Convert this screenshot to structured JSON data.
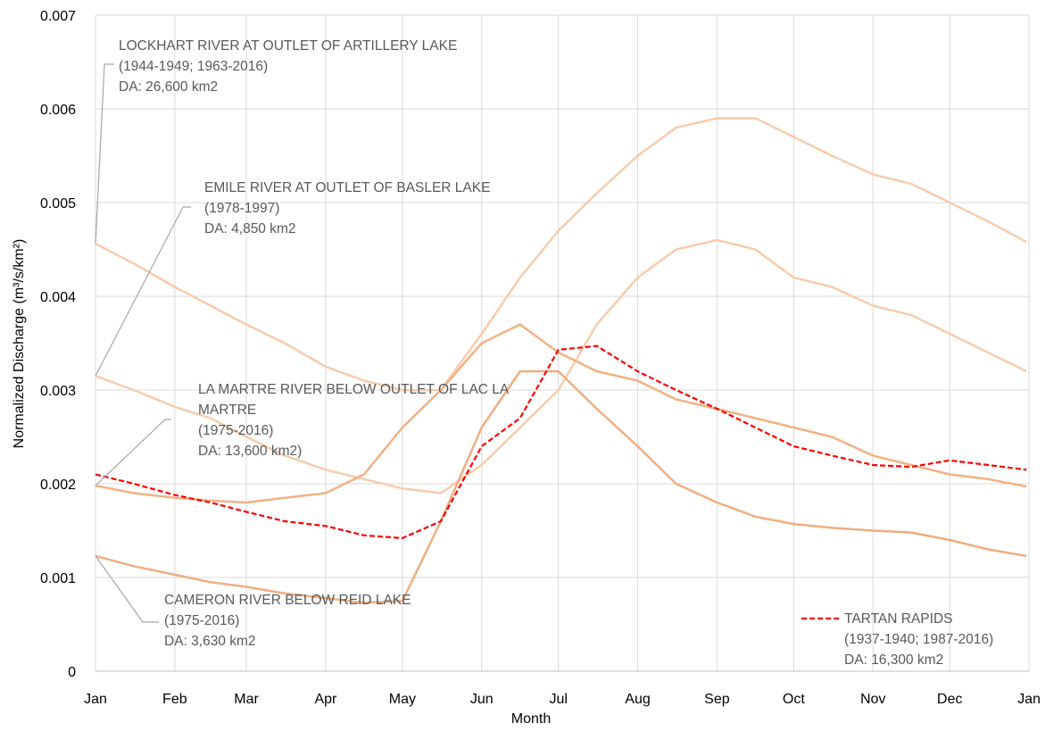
{
  "chart_data": {
    "type": "line",
    "x_label": "Month",
    "y_label": "Normalized Discharge (m³/s/km²)",
    "x": [
      0,
      15,
      31,
      45,
      59,
      74,
      90,
      105,
      120,
      135,
      151,
      166,
      181,
      196,
      212,
      227,
      243,
      258,
      273,
      288,
      304,
      319,
      334,
      349,
      364
    ],
    "xlim": [
      0,
      365
    ],
    "xticks": [
      {
        "value": 0,
        "label": "Jan"
      },
      {
        "value": 31,
        "label": "Feb"
      },
      {
        "value": 59,
        "label": "Mar"
      },
      {
        "value": 90,
        "label": "Apr"
      },
      {
        "value": 120,
        "label": "May"
      },
      {
        "value": 151,
        "label": "Jun"
      },
      {
        "value": 181,
        "label": "Jul"
      },
      {
        "value": 212,
        "label": "Aug"
      },
      {
        "value": 243,
        "label": "Sep"
      },
      {
        "value": 273,
        "label": "Oct"
      },
      {
        "value": 304,
        "label": "Nov"
      },
      {
        "value": 334,
        "label": "Dec"
      },
      {
        "value": 365,
        "label": "Jan"
      }
    ],
    "ylim": [
      0,
      0.007
    ],
    "yticks": [
      0,
      0.001,
      0.002,
      0.003,
      0.004,
      0.005,
      0.006,
      0.007
    ],
    "grid": true,
    "series": [
      {
        "name": "LOCKHART RIVER AT OUTLET OF ARTILLERY LAKE",
        "period": "(1944-1949; 1963-2016)",
        "area": "DA: 26,600 km2",
        "color": "#f8cbad",
        "dashed": false,
        "values": [
          0.00456,
          0.00435,
          0.0041,
          0.0039,
          0.0037,
          0.0035,
          0.00325,
          0.0031,
          0.003,
          0.003,
          0.0036,
          0.0042,
          0.0047,
          0.0051,
          0.0055,
          0.0058,
          0.0059,
          0.0059,
          0.0057,
          0.0055,
          0.0053,
          0.0052,
          0.005,
          0.0048,
          0.00458
        ]
      },
      {
        "name": "EMILE RIVER AT OUTLET OF BASLER LAKE",
        "period": "(1978-1997)",
        "area": "DA: 4,850 km2",
        "color": "#f8cbad",
        "dashed": false,
        "values": [
          0.00315,
          0.003,
          0.00282,
          0.0027,
          0.0025,
          0.0023,
          0.00215,
          0.00205,
          0.00195,
          0.0019,
          0.0022,
          0.0026,
          0.003,
          0.0037,
          0.0042,
          0.0045,
          0.0046,
          0.0045,
          0.0042,
          0.0041,
          0.0039,
          0.0038,
          0.0036,
          0.0034,
          0.0032
        ]
      },
      {
        "name": "LA MARTRE RIVER BELOW OUTLET OF LAC LA MARTRE",
        "period": "(1975-2016)",
        "area": "DA: 13,600 km2)",
        "color": "#f4b183",
        "dashed": false,
        "values": [
          0.00198,
          0.0019,
          0.00185,
          0.00182,
          0.0018,
          0.00185,
          0.0019,
          0.0021,
          0.0026,
          0.003,
          0.0035,
          0.0037,
          0.0034,
          0.0032,
          0.0031,
          0.0029,
          0.0028,
          0.0027,
          0.0026,
          0.0025,
          0.0023,
          0.0022,
          0.0021,
          0.00205,
          0.00197
        ]
      },
      {
        "name": "CAMERON RIVER BELOW REID LAKE",
        "period": "(1975-2016)",
        "area": "DA: 3,630 km2",
        "color": "#f0ad80",
        "dashed": false,
        "values": [
          0.00123,
          0.00112,
          0.00103,
          0.00095,
          0.0009,
          0.00083,
          0.00078,
          0.00073,
          0.00075,
          0.0016,
          0.0026,
          0.0032,
          0.0032,
          0.0028,
          0.0024,
          0.002,
          0.0018,
          0.00165,
          0.00157,
          0.00153,
          0.0015,
          0.00148,
          0.0014,
          0.0013,
          0.00123
        ]
      },
      {
        "name": "TARTAN RAPIDS",
        "period": "(1937-1940; 1987-2016)",
        "area": "DA: 16,300 km2",
        "color": "#ff0000",
        "dashed": true,
        "values": [
          0.0021,
          0.002,
          0.00188,
          0.0018,
          0.0017,
          0.0016,
          0.00155,
          0.00145,
          0.00142,
          0.0016,
          0.0024,
          0.0027,
          0.00343,
          0.00347,
          0.0032,
          0.003,
          0.0028,
          0.0026,
          0.0024,
          0.0023,
          0.0022,
          0.00218,
          0.00225,
          0.0022,
          0.00215
        ]
      }
    ]
  }
}
